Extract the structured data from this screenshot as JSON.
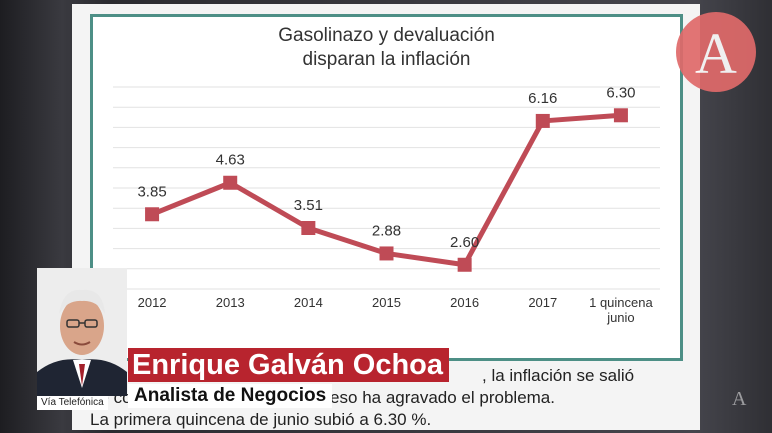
{
  "chart_data": {
    "type": "line",
    "title": "Gasolinazo y devaluación",
    "subtitle": "disparan la inflación",
    "categories": [
      "2012",
      "2013",
      "2014",
      "2015",
      "2016",
      "2017",
      "1 quincena junio"
    ],
    "category_lines": [
      [
        "2012"
      ],
      [
        "2013"
      ],
      [
        "2014"
      ],
      [
        "2015"
      ],
      [
        "2016"
      ],
      [
        "2017"
      ],
      [
        "1 quincena",
        "junio"
      ]
    ],
    "values": [
      3.85,
      4.63,
      3.51,
      2.88,
      2.6,
      6.16,
      6.3
    ],
    "value_labels": [
      "3.85",
      "4.63",
      "3.51",
      "2.88",
      "2.60",
      "6.16",
      "6.30"
    ],
    "ylim": [
      2.0,
      7.0
    ],
    "grid": true,
    "line_color": "#bf4b56",
    "xlabel": "",
    "ylabel": ""
  },
  "caption": {
    "line1": "de control. La devaluación del peso ha agravado el problema.",
    "line1_end": ", la inflación se salió",
    "line2": "La primera quincena de junio subió a 6.30 %."
  },
  "lower_third": {
    "name": "Enrique Galván Ochoa",
    "role": "Analista de Negocios",
    "source": "Vía Telefónica"
  },
  "brand": {
    "logo_letter": "A"
  },
  "colors": {
    "name_bar": "#b8242e",
    "frame": "#4d8f86"
  }
}
